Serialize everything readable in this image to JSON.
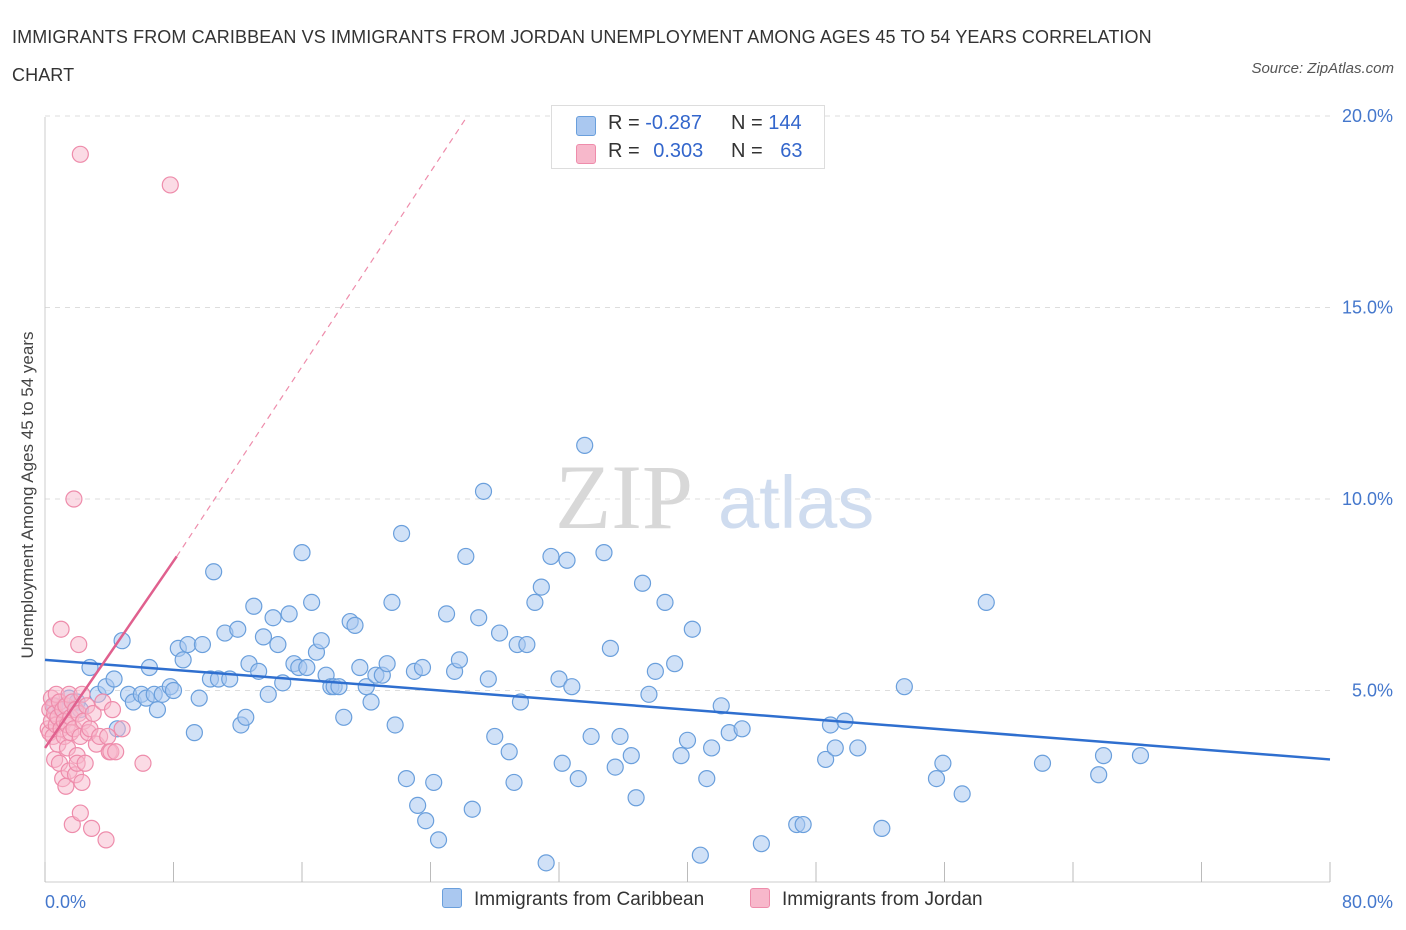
{
  "title": "IMMIGRANTS FROM CARIBBEAN VS IMMIGRANTS FROM JORDAN UNEMPLOYMENT AMONG AGES 45 TO 54 YEARS CORRELATION CHART",
  "source": "Source: ZipAtlas.com",
  "watermark": {
    "zip": "ZIP",
    "atlas": "atlas"
  },
  "colors": {
    "caribbean_fill": "#aac8f0",
    "caribbean_stroke": "#6a9fdc",
    "caribbean_line": "#2f6fcf",
    "jordan_fill": "#f7b8cb",
    "jordan_stroke": "#ee8cab",
    "jordan_line": "#e0608e",
    "tick_text": "#4477cc",
    "grid": "#dddddd"
  },
  "legend_top": [
    {
      "r_label": "R =",
      "r_value": "-0.287",
      "n_label": "N =",
      "n_value": "144"
    },
    {
      "r_label": "R =",
      "r_value": "0.303",
      "n_label": "N =",
      "n_value": "63"
    }
  ],
  "chart_data": {
    "type": "scatter",
    "xlabel": "",
    "ylabel": "Unemployment Among Ages 45 to 54 years",
    "xlim": [
      0,
      80
    ],
    "ylim": [
      0,
      20
    ],
    "x_tick_labels": [
      "0.0%",
      "80.0%"
    ],
    "y_ticks": [
      5,
      10,
      15,
      20
    ],
    "y_tick_labels": [
      "5.0%",
      "10.0%",
      "15.0%",
      "20.0%"
    ],
    "grid": true,
    "legend_position": "bottom",
    "series": [
      {
        "name": "Immigrants from Caribbean",
        "color": "#aac8f0",
        "trend": {
          "x": [
            0,
            80
          ],
          "y": [
            5.8,
            3.2
          ]
        },
        "points": [
          [
            0.6,
            4.6
          ],
          [
            1.0,
            4.5
          ],
          [
            1.5,
            4.8
          ],
          [
            2.0,
            4.7
          ],
          [
            2.2,
            4.5
          ],
          [
            2.8,
            5.6
          ],
          [
            3.3,
            4.9
          ],
          [
            3.8,
            5.1
          ],
          [
            4.3,
            5.3
          ],
          [
            4.5,
            4.0
          ],
          [
            4.8,
            6.3
          ],
          [
            5.2,
            4.9
          ],
          [
            5.5,
            4.7
          ],
          [
            6.0,
            4.9
          ],
          [
            6.3,
            4.8
          ],
          [
            6.5,
            5.6
          ],
          [
            6.8,
            4.9
          ],
          [
            7.0,
            4.5
          ],
          [
            7.3,
            4.9
          ],
          [
            7.8,
            5.1
          ],
          [
            8.0,
            5.0
          ],
          [
            8.3,
            6.1
          ],
          [
            8.6,
            5.8
          ],
          [
            8.9,
            6.2
          ],
          [
            9.3,
            3.9
          ],
          [
            9.6,
            4.8
          ],
          [
            9.8,
            6.2
          ],
          [
            10.3,
            5.3
          ],
          [
            10.5,
            8.1
          ],
          [
            10.8,
            5.3
          ],
          [
            11.2,
            6.5
          ],
          [
            11.5,
            5.3
          ],
          [
            12.0,
            6.6
          ],
          [
            12.2,
            4.1
          ],
          [
            12.5,
            4.3
          ],
          [
            12.7,
            5.7
          ],
          [
            13.0,
            7.2
          ],
          [
            13.3,
            5.5
          ],
          [
            13.6,
            6.4
          ],
          [
            13.9,
            4.9
          ],
          [
            14.2,
            6.9
          ],
          [
            14.5,
            6.2
          ],
          [
            14.8,
            5.2
          ],
          [
            15.2,
            7.0
          ],
          [
            15.5,
            5.7
          ],
          [
            15.8,
            5.6
          ],
          [
            16.0,
            8.6
          ],
          [
            16.3,
            5.6
          ],
          [
            16.6,
            7.3
          ],
          [
            16.9,
            6.0
          ],
          [
            17.2,
            6.3
          ],
          [
            17.5,
            5.4
          ],
          [
            17.8,
            5.1
          ],
          [
            18.0,
            5.1
          ],
          [
            18.3,
            5.1
          ],
          [
            18.6,
            4.3
          ],
          [
            19.0,
            6.8
          ],
          [
            19.3,
            6.7
          ],
          [
            19.6,
            5.6
          ],
          [
            20.0,
            5.1
          ],
          [
            20.3,
            4.7
          ],
          [
            20.6,
            5.4
          ],
          [
            21.0,
            5.4
          ],
          [
            21.3,
            5.7
          ],
          [
            21.6,
            7.3
          ],
          [
            21.8,
            4.1
          ],
          [
            22.2,
            9.1
          ],
          [
            22.5,
            2.7
          ],
          [
            23.0,
            5.5
          ],
          [
            23.2,
            2.0
          ],
          [
            23.5,
            5.6
          ],
          [
            23.7,
            1.6
          ],
          [
            24.2,
            2.6
          ],
          [
            24.5,
            1.1
          ],
          [
            25.0,
            7.0
          ],
          [
            25.5,
            5.5
          ],
          [
            25.8,
            5.8
          ],
          [
            26.2,
            8.5
          ],
          [
            26.6,
            1.9
          ],
          [
            27.0,
            6.9
          ],
          [
            27.3,
            10.2
          ],
          [
            27.6,
            5.3
          ],
          [
            28.0,
            3.8
          ],
          [
            28.3,
            6.5
          ],
          [
            28.9,
            3.4
          ],
          [
            29.2,
            2.6
          ],
          [
            29.4,
            6.2
          ],
          [
            29.6,
            4.7
          ],
          [
            30.0,
            6.2
          ],
          [
            30.5,
            7.3
          ],
          [
            30.9,
            7.7
          ],
          [
            31.2,
            0.5
          ],
          [
            31.5,
            8.5
          ],
          [
            32.0,
            5.3
          ],
          [
            32.2,
            3.1
          ],
          [
            32.5,
            8.4
          ],
          [
            32.8,
            5.1
          ],
          [
            33.2,
            2.7
          ],
          [
            33.6,
            11.4
          ],
          [
            34.0,
            3.8
          ],
          [
            34.8,
            8.6
          ],
          [
            35.2,
            6.1
          ],
          [
            35.5,
            3.0
          ],
          [
            35.8,
            3.8
          ],
          [
            36.5,
            3.3
          ],
          [
            36.8,
            2.2
          ],
          [
            37.2,
            7.8
          ],
          [
            37.6,
            4.9
          ],
          [
            38.0,
            5.5
          ],
          [
            38.6,
            7.3
          ],
          [
            39.2,
            5.7
          ],
          [
            39.6,
            3.3
          ],
          [
            40.0,
            3.7
          ],
          [
            40.3,
            6.6
          ],
          [
            40.8,
            0.7
          ],
          [
            41.2,
            2.7
          ],
          [
            41.5,
            3.5
          ],
          [
            42.1,
            4.6
          ],
          [
            42.6,
            3.9
          ],
          [
            43.4,
            4.0
          ],
          [
            44.6,
            1.0
          ],
          [
            46.8,
            1.5
          ],
          [
            47.2,
            1.5
          ],
          [
            48.6,
            3.2
          ],
          [
            48.9,
            4.1
          ],
          [
            49.2,
            3.5
          ],
          [
            49.8,
            4.2
          ],
          [
            50.6,
            3.5
          ],
          [
            52.1,
            1.4
          ],
          [
            53.5,
            5.1
          ],
          [
            55.5,
            2.7
          ],
          [
            55.9,
            3.1
          ],
          [
            57.1,
            2.3
          ],
          [
            58.6,
            7.3
          ],
          [
            62.1,
            3.1
          ],
          [
            65.6,
            2.8
          ],
          [
            65.9,
            3.3
          ],
          [
            68.2,
            3.3
          ]
        ]
      },
      {
        "name": "Immigrants from Jordan",
        "color": "#f7b8cb",
        "trend": {
          "x": [
            0,
            8.2
          ],
          "y": [
            3.5,
            8.5
          ]
        },
        "trend_extension": {
          "x": [
            8.2,
            26.3
          ],
          "y": [
            8.5,
            20.0
          ]
        },
        "points": [
          [
            0.2,
            4.0
          ],
          [
            0.3,
            4.5
          ],
          [
            0.3,
            3.9
          ],
          [
            0.4,
            4.8
          ],
          [
            0.4,
            4.2
          ],
          [
            0.5,
            4.6
          ],
          [
            0.5,
            3.8
          ],
          [
            0.6,
            4.4
          ],
          [
            0.6,
            3.2
          ],
          [
            0.7,
            4.9
          ],
          [
            0.7,
            4.1
          ],
          [
            0.8,
            4.3
          ],
          [
            0.8,
            3.6
          ],
          [
            0.9,
            4.7
          ],
          [
            0.9,
            3.1
          ],
          [
            1.0,
            4.0
          ],
          [
            1.0,
            6.6
          ],
          [
            1.1,
            4.5
          ],
          [
            1.1,
            2.7
          ],
          [
            1.2,
            4.2
          ],
          [
            1.2,
            3.8
          ],
          [
            1.3,
            4.6
          ],
          [
            1.3,
            2.5
          ],
          [
            1.4,
            4.1
          ],
          [
            1.4,
            3.5
          ],
          [
            1.5,
            4.9
          ],
          [
            1.5,
            2.9
          ],
          [
            1.6,
            4.3
          ],
          [
            1.6,
            3.9
          ],
          [
            1.7,
            1.5
          ],
          [
            1.7,
            4.7
          ],
          [
            1.8,
            10.0
          ],
          [
            1.8,
            4.0
          ],
          [
            1.9,
            2.8
          ],
          [
            1.9,
            4.5
          ],
          [
            2.0,
            3.3
          ],
          [
            2.0,
            3.1
          ],
          [
            2.1,
            6.2
          ],
          [
            2.1,
            4.4
          ],
          [
            2.2,
            1.8
          ],
          [
            2.2,
            3.8
          ],
          [
            2.3,
            4.9
          ],
          [
            2.3,
            2.6
          ],
          [
            2.4,
            4.2
          ],
          [
            2.5,
            3.1
          ],
          [
            2.6,
            4.6
          ],
          [
            2.7,
            3.9
          ],
          [
            2.8,
            4.0
          ],
          [
            2.9,
            1.4
          ],
          [
            3.0,
            4.4
          ],
          [
            3.2,
            3.6
          ],
          [
            3.4,
            3.8
          ],
          [
            3.6,
            4.7
          ],
          [
            3.8,
            1.1
          ],
          [
            3.9,
            3.8
          ],
          [
            4.0,
            3.4
          ],
          [
            4.1,
            3.4
          ],
          [
            4.2,
            4.5
          ],
          [
            4.4,
            3.4
          ],
          [
            4.8,
            4.0
          ],
          [
            6.1,
            3.1
          ],
          [
            2.2,
            19.0
          ],
          [
            7.8,
            18.2
          ]
        ]
      }
    ]
  }
}
